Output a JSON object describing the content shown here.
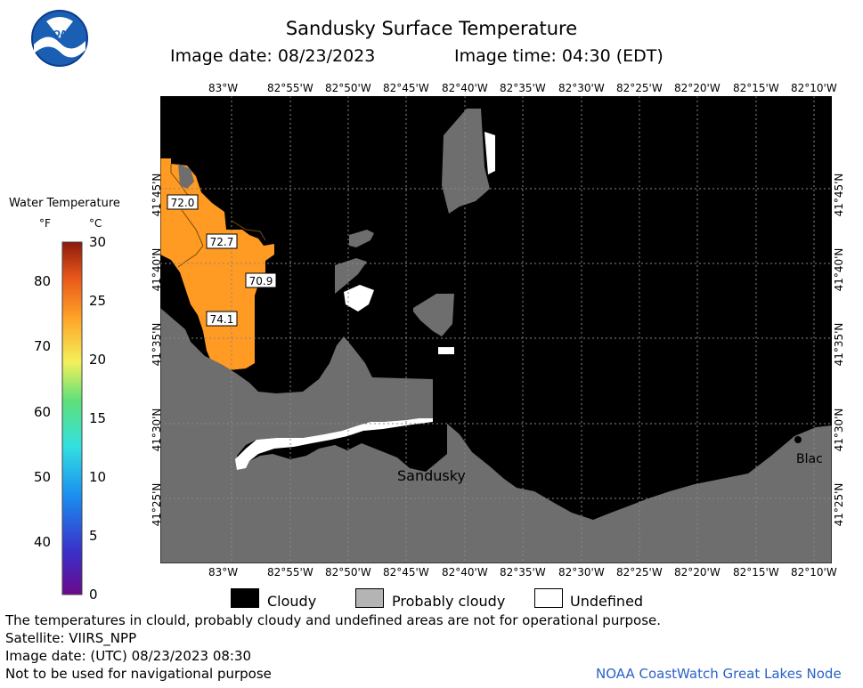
{
  "header": {
    "title": "Sandusky Surface Temperature",
    "image_date_label": "Image date: 08/23/2023",
    "image_time_label": "Image time: 04:30 (EDT)"
  },
  "logo": {
    "text": "NOAA"
  },
  "legend": {
    "title": "Water Temperature",
    "unit_f": "°F",
    "unit_c": "°C",
    "fahrenheit_ticks": [
      "80",
      "70",
      "60",
      "50",
      "40"
    ],
    "celsius_ticks": [
      "30",
      "25",
      "20",
      "15",
      "10",
      "5",
      "0"
    ],
    "range_c": [
      0,
      30
    ]
  },
  "map": {
    "longitude_labels": [
      "83°W",
      "82°55'W",
      "82°50'W",
      "82°45'W",
      "82°40'W",
      "82°35'W",
      "82°30'W",
      "82°25'W",
      "82°20'W",
      "82°15'W",
      "82°10'W"
    ],
    "latitude_labels": [
      "41°45'N",
      "41°40'N",
      "41°35'N",
      "41°30'N",
      "41°25'N"
    ],
    "temperature_labels": [
      "72.0",
      "72.7",
      "70.9",
      "74.1"
    ],
    "place_labels": [
      "Sandusky",
      "Blac"
    ],
    "colors": {
      "cloudy": "#000000",
      "probably_cloudy": "#6e6e6e",
      "land": "#6e6e6e",
      "undefined": "#ffffff",
      "warm_water": "#ff9a22"
    }
  },
  "key": {
    "cloudy": "Cloudy",
    "probably_cloudy": "Probably cloudy",
    "undefined": "Undefined"
  },
  "footer": {
    "disclaimer": "The temperatures in clould, probably cloudy and undefined areas are not for operational purpose.",
    "satellite": "Satellite: VIIRS_NPP",
    "utc_date": "Image date: (UTC) 08/23/2023  08:30",
    "navigation": "Not to be used for navigational purpose",
    "credit": "NOAA CoastWatch Great Lakes Node"
  }
}
